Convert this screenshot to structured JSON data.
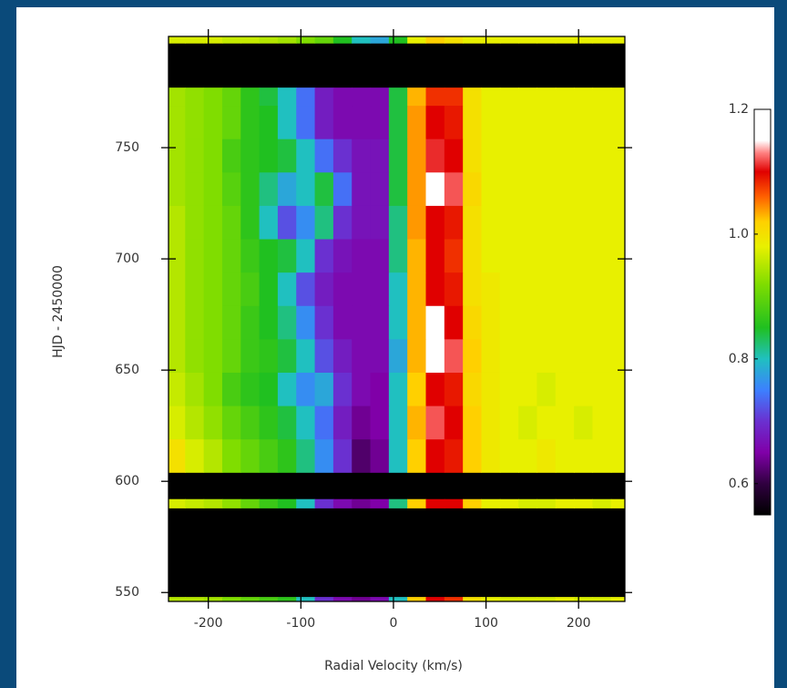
{
  "chart_data": {
    "type": "heatmap",
    "x_label": "Radial Velocity (km/s)",
    "y_label": "HJD - 2450000",
    "xlim": [
      -243,
      250
    ],
    "ylim": [
      546,
      800
    ],
    "xticks": [
      -200,
      -100,
      0,
      100,
      200
    ],
    "yticks": [
      550,
      600,
      650,
      700,
      750
    ],
    "zlim": [
      0.55,
      1.2
    ],
    "zticks": [
      0.6,
      0.8,
      {
        "value": 1,
        "label": "1.0"
      },
      1.2
    ],
    "colormap": [
      [
        0.55,
        "#000000"
      ],
      [
        0.6,
        "#300040"
      ],
      [
        0.65,
        "#8000a8"
      ],
      [
        0.7,
        "#6a30d0"
      ],
      [
        0.75,
        "#3c80ff"
      ],
      [
        0.8,
        "#20c0c0"
      ],
      [
        0.85,
        "#20c020"
      ],
      [
        0.92,
        "#80dd00"
      ],
      [
        0.98,
        "#e8f000"
      ],
      [
        1.02,
        "#ffd000"
      ],
      [
        1.06,
        "#ff6000"
      ],
      [
        1.1,
        "#e00000"
      ],
      [
        1.13,
        "#ff8080"
      ],
      [
        1.15,
        "#ffffff"
      ],
      [
        1.2,
        "#ffffff"
      ]
    ],
    "x_edges": [
      -245,
      -225,
      -205,
      -185,
      -165,
      -145,
      -125,
      -105,
      -85,
      -65,
      -45,
      -25,
      -5,
      15,
      35,
      55,
      75,
      95,
      115,
      135,
      155,
      175,
      195,
      215,
      235,
      255
    ],
    "rows": [
      {
        "y": [
          546,
          548
        ],
        "values": [
          0.95,
          0.95,
          0.94,
          0.92,
          0.9,
          0.88,
          0.86,
          0.8,
          0.7,
          0.66,
          0.64,
          0.66,
          0.8,
          1.02,
          1.1,
          1.08,
          1.0,
          0.98,
          0.97,
          0.97,
          0.97,
          0.98,
          0.97,
          0.97,
          0.98
        ]
      },
      {
        "y": [
          588,
          592
        ],
        "values": [
          0.97,
          0.96,
          0.95,
          0.93,
          0.9,
          0.87,
          0.85,
          0.8,
          0.7,
          0.66,
          0.64,
          0.65,
          0.82,
          1.02,
          1.1,
          1.1,
          1.02,
          0.98,
          0.98,
          0.97,
          0.97,
          0.98,
          0.98,
          0.97,
          0.98
        ]
      },
      {
        "y": [
          604,
          619
        ],
        "values": [
          1.0,
          0.97,
          0.95,
          0.92,
          0.9,
          0.88,
          0.86,
          0.82,
          0.76,
          0.7,
          0.62,
          0.64,
          0.8,
          1.02,
          1.1,
          1.09,
          1.02,
          0.99,
          0.98,
          0.98,
          0.99,
          0.98,
          0.98,
          0.98,
          0.98
        ]
      },
      {
        "y": [
          619,
          634
        ],
        "values": [
          0.97,
          0.95,
          0.93,
          0.9,
          0.88,
          0.86,
          0.84,
          0.8,
          0.74,
          0.68,
          0.64,
          0.65,
          0.8,
          1.03,
          1.12,
          1.1,
          1.02,
          0.99,
          0.98,
          0.97,
          0.98,
          0.98,
          0.97,
          0.98,
          0.98
        ]
      },
      {
        "y": [
          634,
          649
        ],
        "values": [
          0.96,
          0.94,
          0.92,
          0.88,
          0.86,
          0.85,
          0.8,
          0.76,
          0.78,
          0.7,
          0.66,
          0.65,
          0.8,
          1.02,
          1.1,
          1.09,
          1.01,
          0.99,
          0.98,
          0.98,
          0.97,
          0.98,
          0.98,
          0.98,
          0.98
        ]
      },
      {
        "y": [
          649,
          664
        ],
        "values": [
          0.95,
          0.93,
          0.92,
          0.9,
          0.87,
          0.86,
          0.84,
          0.8,
          0.72,
          0.68,
          0.66,
          0.66,
          0.78,
          1.03,
          1.16,
          1.12,
          1.02,
          0.99,
          0.98,
          0.98,
          0.98,
          0.98,
          0.98,
          0.98,
          0.98
        ]
      },
      {
        "y": [
          664,
          679
        ],
        "values": [
          0.95,
          0.93,
          0.92,
          0.9,
          0.87,
          0.85,
          0.82,
          0.76,
          0.7,
          0.66,
          0.66,
          0.66,
          0.8,
          1.03,
          1.15,
          1.1,
          1.01,
          0.99,
          0.98,
          0.98,
          0.98,
          0.98,
          0.98,
          0.98,
          0.98
        ]
      },
      {
        "y": [
          679,
          694
        ],
        "values": [
          0.95,
          0.93,
          0.92,
          0.9,
          0.88,
          0.85,
          0.8,
          0.72,
          0.68,
          0.66,
          0.66,
          0.66,
          0.8,
          1.03,
          1.1,
          1.09,
          1.0,
          0.99,
          0.98,
          0.98,
          0.98,
          0.98,
          0.98,
          0.98,
          0.98
        ]
      },
      {
        "y": [
          694,
          709
        ],
        "values": [
          0.95,
          0.93,
          0.92,
          0.9,
          0.87,
          0.85,
          0.84,
          0.8,
          0.7,
          0.67,
          0.66,
          0.66,
          0.82,
          1.03,
          1.1,
          1.08,
          1.0,
          0.98,
          0.98,
          0.98,
          0.98,
          0.98,
          0.98,
          0.98,
          0.98
        ]
      },
      {
        "y": [
          709,
          724
        ],
        "values": [
          0.95,
          0.93,
          0.92,
          0.9,
          0.86,
          0.8,
          0.72,
          0.76,
          0.82,
          0.7,
          0.67,
          0.67,
          0.82,
          1.04,
          1.1,
          1.09,
          1.0,
          0.98,
          0.98,
          0.98,
          0.98,
          0.98,
          0.98,
          0.98,
          0.98
        ]
      },
      {
        "y": [
          724,
          739
        ],
        "values": [
          0.94,
          0.93,
          0.92,
          0.89,
          0.86,
          0.82,
          0.78,
          0.8,
          0.84,
          0.74,
          0.67,
          0.67,
          0.84,
          1.04,
          1.16,
          1.12,
          1.01,
          0.98,
          0.98,
          0.98,
          0.98,
          0.98,
          0.98,
          0.98,
          0.98
        ]
      },
      {
        "y": [
          739,
          754
        ],
        "values": [
          0.94,
          0.93,
          0.92,
          0.88,
          0.86,
          0.85,
          0.84,
          0.8,
          0.74,
          0.7,
          0.67,
          0.67,
          0.84,
          1.04,
          1.11,
          1.1,
          1.0,
          0.98,
          0.98,
          0.98,
          0.98,
          0.98,
          0.98,
          0.98,
          0.98
        ]
      },
      {
        "y": [
          754,
          769
        ],
        "values": [
          0.94,
          0.93,
          0.92,
          0.9,
          0.86,
          0.85,
          0.8,
          0.74,
          0.68,
          0.66,
          0.66,
          0.66,
          0.84,
          1.04,
          1.1,
          1.09,
          1.0,
          0.98,
          0.98,
          0.98,
          0.98,
          0.98,
          0.98,
          0.98,
          0.98
        ]
      },
      {
        "y": [
          769,
          777
        ],
        "values": [
          0.94,
          0.93,
          0.92,
          0.9,
          0.86,
          0.84,
          0.8,
          0.74,
          0.68,
          0.66,
          0.66,
          0.66,
          0.84,
          1.03,
          1.08,
          1.08,
          1.0,
          0.98,
          0.98,
          0.98,
          0.98,
          0.98,
          0.98,
          0.98,
          0.98
        ]
      },
      {
        "y": [
          797,
          800
        ],
        "values": [
          0.97,
          0.97,
          0.97,
          0.96,
          0.96,
          0.95,
          0.94,
          0.92,
          0.9,
          0.85,
          0.8,
          0.78,
          0.85,
          0.98,
          1.02,
          1.0,
          0.98,
          0.98,
          0.98,
          0.98,
          0.98,
          0.98,
          0.98,
          0.98,
          0.98
        ]
      }
    ]
  }
}
